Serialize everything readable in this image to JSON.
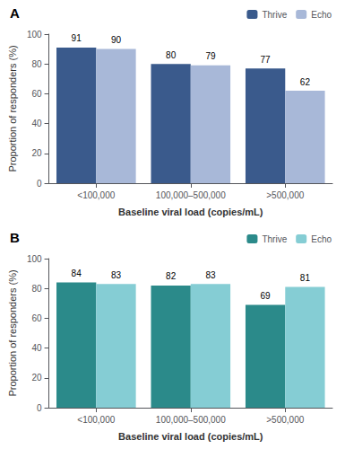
{
  "chart_data": [
    {
      "type": "bar",
      "title": "A",
      "categories": [
        "<100,000",
        "100,000–500,000",
        ">500,000"
      ],
      "series": [
        {
          "name": "Thrive",
          "color": "#3A5A8C",
          "values": [
            91,
            80,
            77
          ]
        },
        {
          "name": "Echo",
          "color": "#A8B8D8",
          "values": [
            90,
            79,
            62
          ]
        }
      ],
      "xlabel": "Baseline viral load (copies/mL)",
      "ylabel": "Proportion of responders (%)",
      "ylim": [
        0,
        100
      ],
      "yticks": [
        0,
        20,
        40,
        60,
        80,
        100
      ],
      "grid": false,
      "legend": "upper right",
      "data_labels": true
    },
    {
      "type": "bar",
      "title": "B",
      "categories": [
        "<100,000",
        "100,000–500,000",
        ">500,000"
      ],
      "series": [
        {
          "name": "Thrive",
          "color": "#2B8A8A",
          "values": [
            84,
            82,
            69
          ]
        },
        {
          "name": "Echo",
          "color": "#85CDD4",
          "values": [
            83,
            83,
            81
          ]
        }
      ],
      "xlabel": "Baseline viral load (copies/mL)",
      "ylabel": "Proportion of responders (%)",
      "ylim": [
        0,
        100
      ],
      "yticks": [
        0,
        20,
        40,
        60,
        80,
        100
      ],
      "grid": false,
      "legend": "upper right",
      "data_labels": true
    }
  ]
}
